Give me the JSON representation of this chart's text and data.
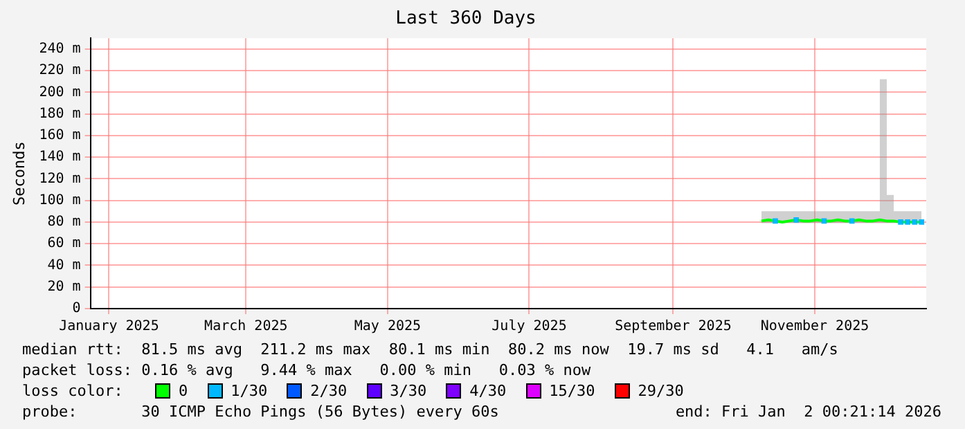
{
  "chart_data": {
    "type": "line",
    "title": "Last 360 Days",
    "ylabel": "Seconds",
    "x": [
      "2025-10-23",
      "2025-10-26",
      "2025-10-29",
      "2025-11-01",
      "2025-11-04",
      "2025-11-07",
      "2025-11-10",
      "2025-11-13",
      "2025-11-16",
      "2025-11-19",
      "2025-11-22",
      "2025-11-25",
      "2025-11-28",
      "2025-12-01",
      "2025-12-04",
      "2025-12-07",
      "2025-12-10",
      "2025-12-13",
      "2025-12-16",
      "2025-12-19",
      "2025-12-22",
      "2025-12-25",
      "2025-12-28",
      "2025-12-31"
    ],
    "series": [
      {
        "name": "0",
        "color": "#00ff00",
        "values": [
          81,
          82,
          81,
          80,
          81,
          82,
          81,
          81,
          82,
          81,
          81,
          82,
          81,
          81,
          82,
          81,
          81,
          82,
          81,
          81,
          80,
          80,
          80,
          80
        ],
        "lower": [
          79,
          79,
          79,
          79,
          79,
          79,
          79,
          79,
          79,
          79,
          79,
          79,
          79,
          79,
          79,
          79,
          79,
          79,
          79,
          79,
          79,
          79,
          79,
          79
        ],
        "upper": [
          90,
          90,
          90,
          90,
          90,
          90,
          90,
          90,
          90,
          90,
          90,
          90,
          90,
          90,
          90,
          90,
          90,
          212,
          105,
          90,
          90,
          90,
          90,
          90
        ]
      },
      {
        "name": "1/30",
        "color": "#00b8ff",
        "type": "scatter",
        "values": [
          null,
          null,
          81,
          null,
          null,
          82,
          null,
          null,
          null,
          81,
          null,
          null,
          null,
          81,
          null,
          null,
          null,
          null,
          null,
          null,
          80,
          80,
          80,
          80
        ]
      },
      {
        "name": "2/30",
        "color": "#0059ff",
        "type": "scatter",
        "values": [
          null,
          null,
          null,
          null,
          null,
          null,
          null,
          null,
          null,
          null,
          null,
          null,
          null,
          null,
          null,
          null,
          null,
          null,
          null,
          null,
          null,
          null,
          null,
          null
        ]
      },
      {
        "name": "3/30",
        "color": "#5e00ff",
        "type": "scatter",
        "values": [
          null,
          null,
          null,
          null,
          null,
          null,
          null,
          null,
          null,
          null,
          null,
          null,
          null,
          null,
          null,
          null,
          null,
          null,
          null,
          null,
          null,
          null,
          null,
          null
        ]
      },
      {
        "name": "4/30",
        "color": "#7e00ff",
        "type": "scatter",
        "values": [
          null,
          null,
          null,
          null,
          null,
          null,
          null,
          null,
          null,
          null,
          null,
          null,
          null,
          null,
          null,
          null,
          null,
          null,
          null,
          null,
          null,
          null,
          null,
          null
        ]
      },
      {
        "name": "15/30",
        "color": "#dd00ff",
        "type": "scatter",
        "values": [
          null,
          null,
          null,
          null,
          null,
          null,
          null,
          null,
          null,
          null,
          null,
          null,
          null,
          null,
          null,
          null,
          null,
          null,
          null,
          null,
          null,
          null,
          null,
          null
        ]
      },
      {
        "name": "29/30",
        "color": "#ff0000",
        "type": "scatter",
        "values": [
          null,
          null,
          null,
          null,
          null,
          null,
          null,
          null,
          null,
          null,
          null,
          null,
          null,
          null,
          null,
          null,
          null,
          null,
          null,
          null,
          null,
          null,
          null,
          null
        ]
      }
    ],
    "xlim": [
      "2025-01-07",
      "2026-01-02"
    ],
    "xticks": [
      {
        "value": "2025-01-15",
        "label": "January 2025"
      },
      {
        "value": "2025-03-15",
        "label": "March 2025"
      },
      {
        "value": "2025-05-15",
        "label": "May 2025"
      },
      {
        "value": "2025-07-15",
        "label": "July 2025"
      },
      {
        "value": "2025-09-15",
        "label": "September 2025"
      },
      {
        "value": "2025-11-15",
        "label": "November 2025"
      }
    ],
    "ylim": [
      0,
      250
    ],
    "yticks": [
      0,
      {
        "value": 20,
        "label": "20 m"
      },
      {
        "value": 40,
        "label": "40 m"
      },
      {
        "value": 60,
        "label": "60 m"
      },
      {
        "value": 80,
        "label": "80 m"
      },
      {
        "value": 100,
        "label": "100 m"
      },
      {
        "value": 120,
        "label": "120 m"
      },
      {
        "value": 140,
        "label": "140 m"
      },
      {
        "value": 160,
        "label": "160 m"
      },
      {
        "value": 180,
        "label": "180 m"
      },
      {
        "value": 200,
        "label": "200 m"
      },
      {
        "value": 220,
        "label": "220 m"
      },
      {
        "value": 240,
        "label": "240 m"
      }
    ],
    "grid": true,
    "legend": "bottom",
    "legend_title": "loss color:",
    "annotations": [
      "median rtt:  81.5 ms avg  211.2 ms max  80.1 ms min  80.2 ms now  19.7 ms sd   4.1   am/s",
      "packet loss: 0.16 % avg   9.44 % max   0.00 % min   0.03 % now",
      "probe:       30 ICMP Echo Pings (56 Bytes) every 60s",
      "end: Fri Jan  2 00:21:14 2026"
    ]
  }
}
